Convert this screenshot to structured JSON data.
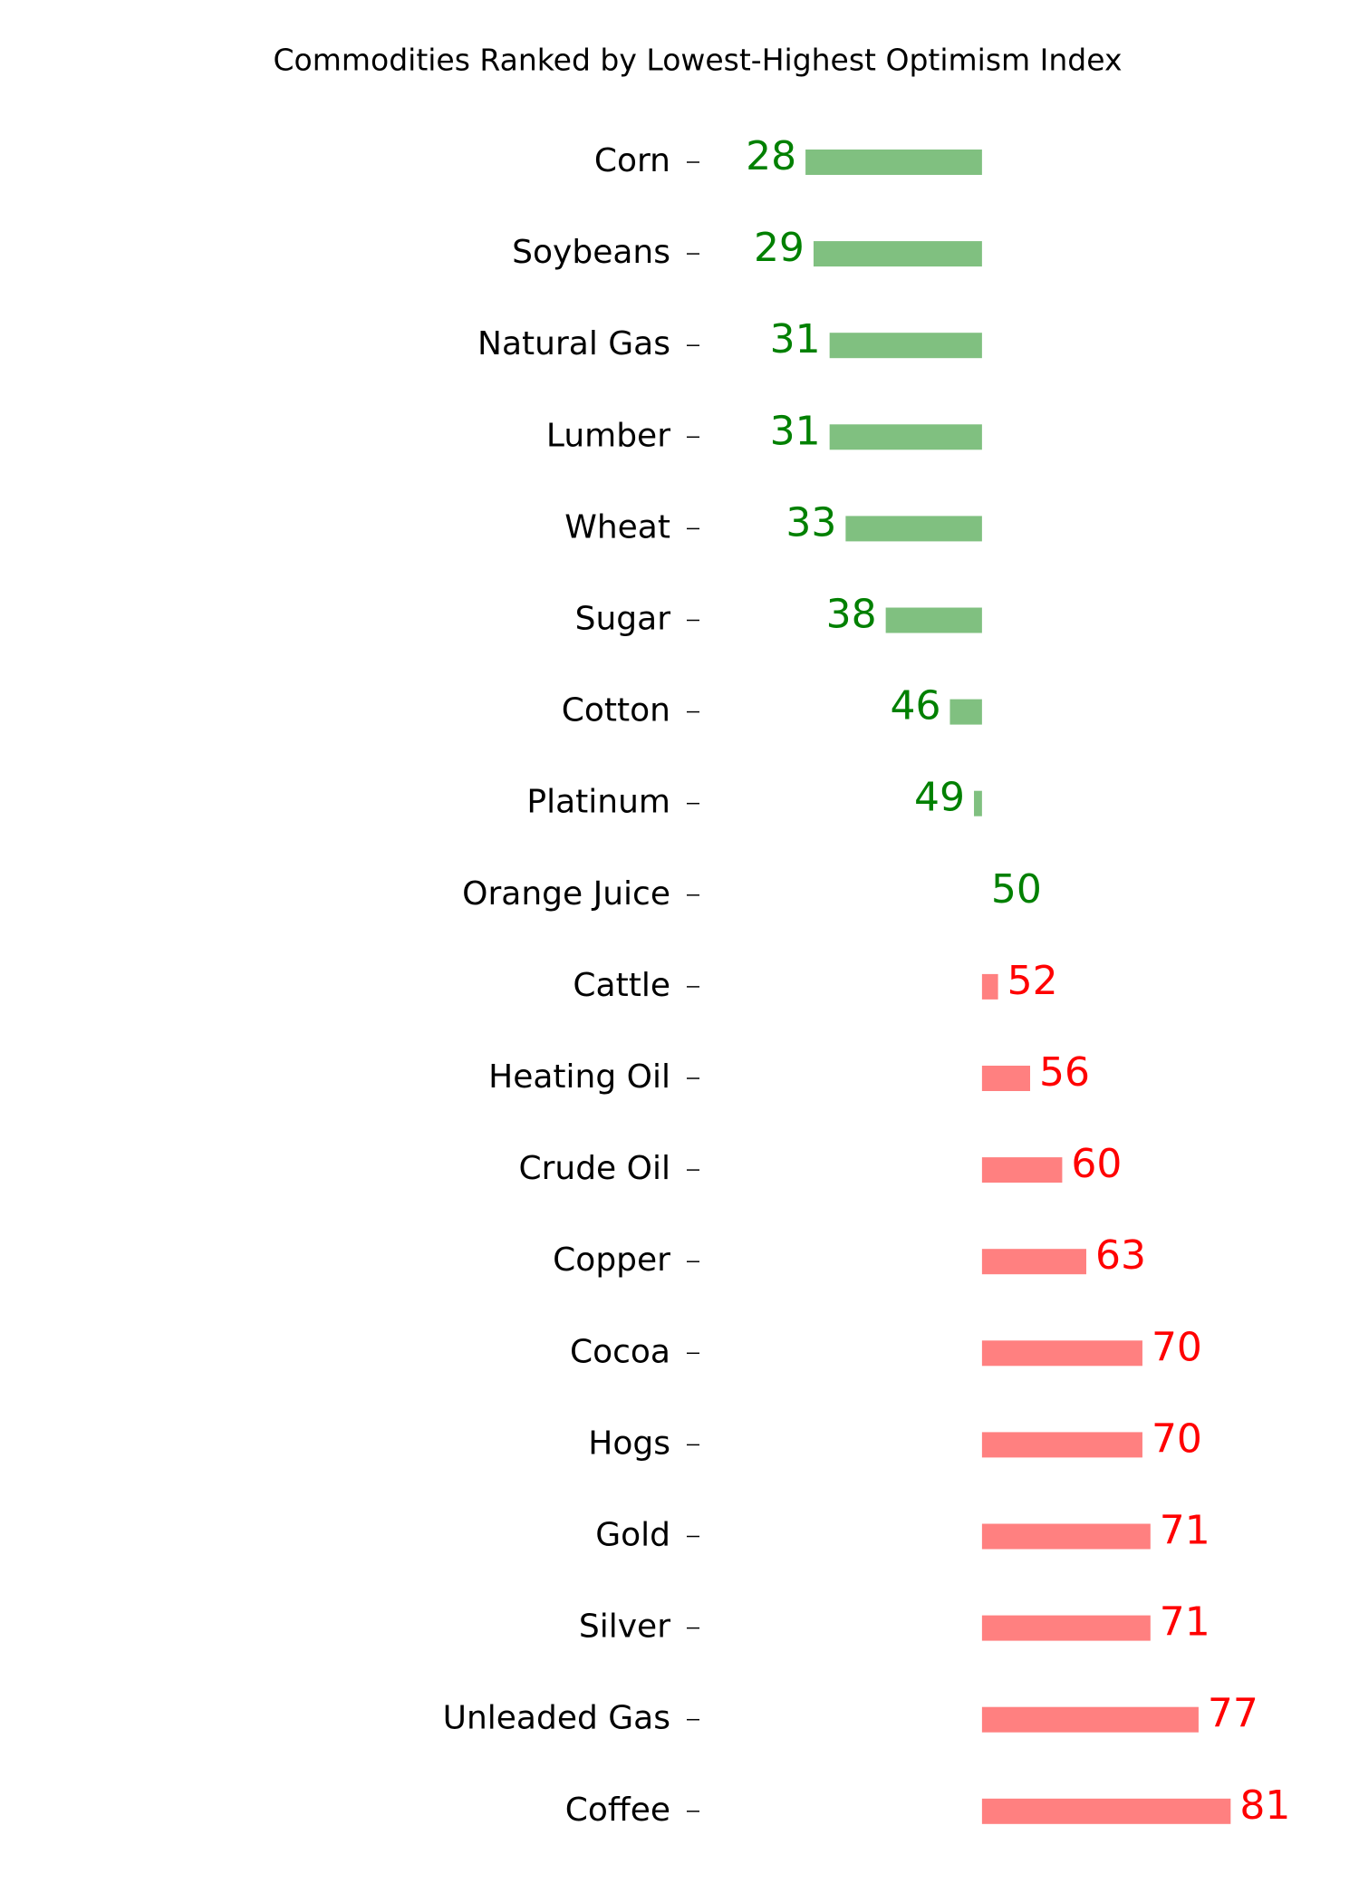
{
  "chart_data": {
    "type": "diverging-bar",
    "title": "Commodities Ranked by Lowest-Highest Optimism Index",
    "categories": [
      "Corn",
      "Soybeans",
      "Natural Gas",
      "Lumber",
      "Wheat",
      "Sugar",
      "Cotton",
      "Platinum",
      "Orange Juice",
      "Cattle",
      "Heating Oil",
      "Crude Oil",
      "Copper",
      "Cocoa",
      "Hogs",
      "Gold",
      "Silver",
      "Unleaded Gas",
      "Coffee"
    ],
    "values": [
      28,
      29,
      31,
      31,
      33,
      38,
      46,
      49,
      50,
      52,
      56,
      60,
      63,
      70,
      70,
      71,
      71,
      77,
      81
    ],
    "baseline": 50,
    "colors": [
      "#80c080",
      "#80c080",
      "#80c080",
      "#80c080",
      "#80c080",
      "#80c080",
      "#80c080",
      "#80c080",
      "#80c080",
      "#ff8080",
      "#ff8080",
      "#ff8080",
      "#ff8080",
      "#ff8080",
      "#ff8080",
      "#ff8080",
      "#ff8080",
      "#ff8080",
      "#ff8080"
    ],
    "label_colors": [
      "#008000",
      "#008000",
      "#008000",
      "#008000",
      "#008000",
      "#008000",
      "#008000",
      "#008000",
      "#008000",
      "#ff0000",
      "#ff0000",
      "#ff0000",
      "#ff0000",
      "#ff0000",
      "#ff0000",
      "#ff0000",
      "#ff0000",
      "#ff0000",
      "#ff0000"
    ],
    "xlim": [
      15,
      97
    ]
  }
}
